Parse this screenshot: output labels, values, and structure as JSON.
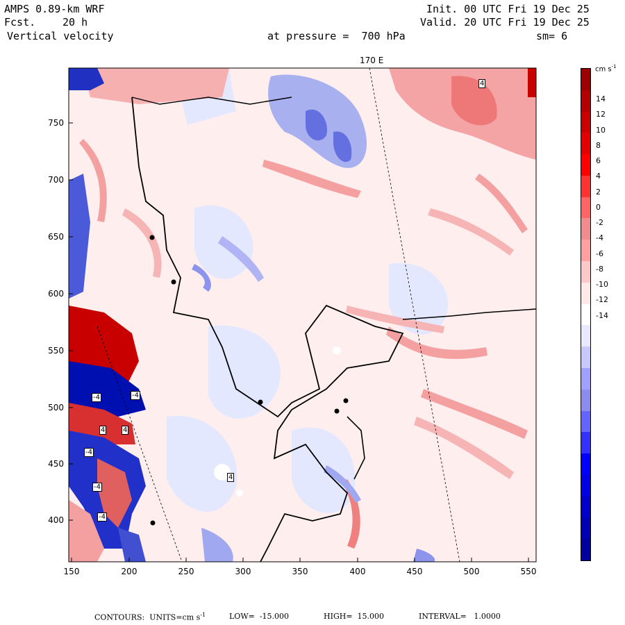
{
  "header": {
    "model": "AMPS 0.89-km WRF",
    "fcst_label": "Fcst.",
    "fcst_value": "20 h",
    "variable": "Vertical velocity",
    "init": "Init. 00 UTC Fri 19 Dec 25",
    "valid": "Valid. 20 UTC Fri 19 Dec 25",
    "pressure": "at pressure =  700 hPa",
    "smoothing": "sm= 6"
  },
  "map": {
    "meridian_label": "170 E",
    "x_ticks": [
      "150",
      "200",
      "250",
      "300",
      "350",
      "400",
      "450",
      "500",
      "550"
    ],
    "y_ticks": [
      "750",
      "700",
      "650",
      "600",
      "550",
      "500",
      "450",
      "400"
    ],
    "contour_box_labels": [
      "4",
      "4",
      "-4",
      "-4",
      "4",
      "4",
      "-4",
      "-4",
      "-4"
    ]
  },
  "colorbar": {
    "units": "cm s",
    "units_exp": "-1",
    "labels": [
      "14",
      "12",
      "10",
      "8",
      "6",
      "4",
      "2",
      "0",
      "-2",
      "-4",
      "-6",
      "-8",
      "-10",
      "-12",
      "-14"
    ],
    "colors": [
      "#9c0000",
      "#b40000",
      "#cc0000",
      "#e40000",
      "#ff0000",
      "#ff3232",
      "#ff6464",
      "#f08c8c",
      "#ffa0a0",
      "#ffc8c8",
      "#ffe8e8",
      "#ffffff",
      "#e8e8ff",
      "#c8c8ff",
      "#a0a0ff",
      "#8c8cf0",
      "#6464ff",
      "#3232ff",
      "#0000ff",
      "#0000e4",
      "#0000cc",
      "#0000b4",
      "#00009c"
    ]
  },
  "footer": {
    "contours": "CONTOURS:  UNITS=cm s",
    "units_exp": "-1",
    "low": "LOW=  -15.000",
    "high": "HIGH=  15.000",
    "interval": "INTERVAL=   1.0000"
  }
}
